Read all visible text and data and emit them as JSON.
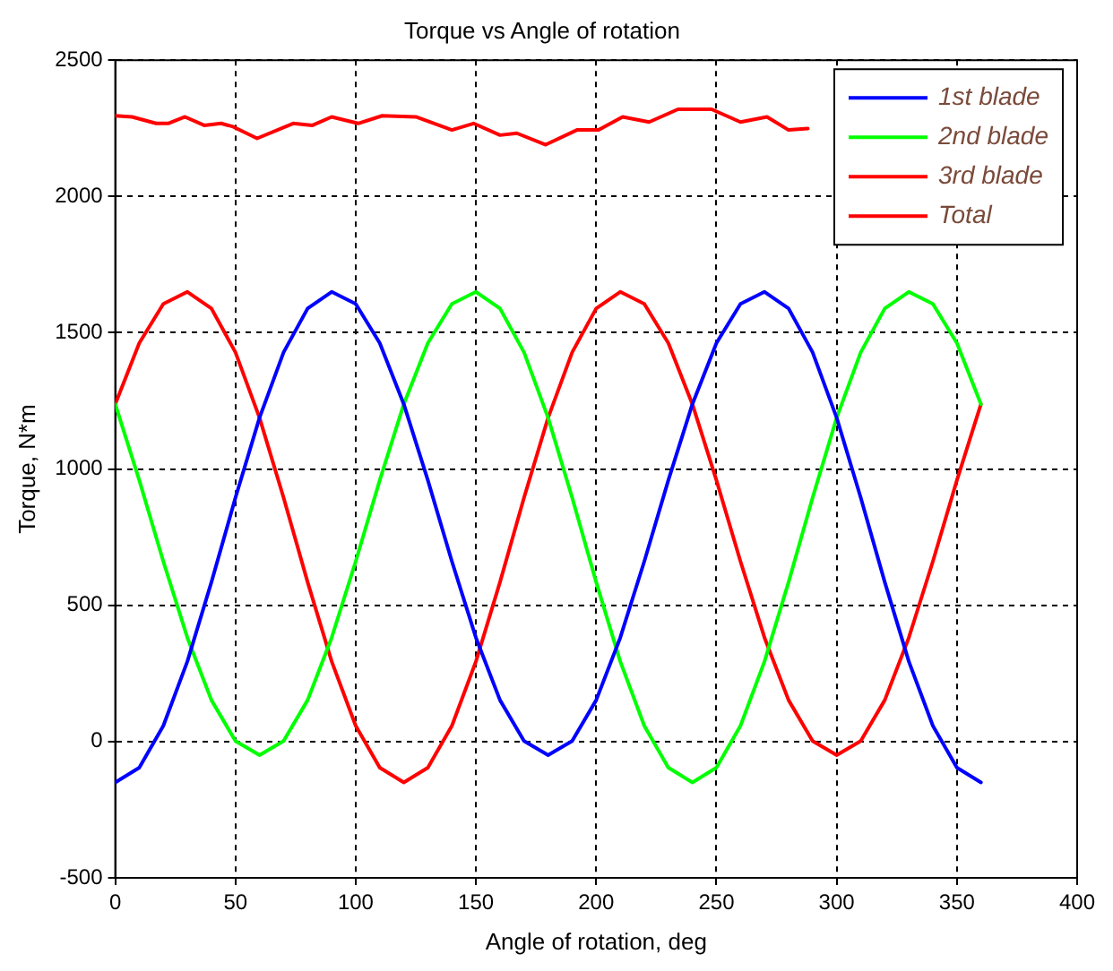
{
  "chart_data": {
    "type": "line",
    "title": "Torque vs Angle of rotation",
    "xlabel": "Angle of rotation, deg",
    "ylabel": "Torque, N*m",
    "x": [
      0,
      10,
      20,
      30,
      40,
      50,
      60,
      70,
      80,
      90,
      100,
      110,
      120,
      130,
      140,
      150,
      160,
      170,
      180,
      190,
      200,
      210,
      220,
      230,
      240,
      250,
      260,
      270,
      280,
      290,
      300,
      310,
      320,
      330,
      340,
      350,
      360
    ],
    "series": [
      {
        "name": "1st blade",
        "color": "#0000ff",
        "values": [
          -150,
          -96,
          58,
          294,
          585,
          895,
          1188,
          1428,
          1589,
          1650,
          1606,
          1462,
          1238,
          959,
          661,
          381,
          152,
          2,
          -50,
          2,
          152,
          381,
          661,
          959,
          1238,
          1462,
          1606,
          1650,
          1589,
          1428,
          1188,
          895,
          585,
          294,
          58,
          -96,
          -150
        ]
      },
      {
        "name": "2nd blade",
        "color": "#00ff00",
        "values": [
          1238,
          959,
          661,
          381,
          152,
          2,
          -50,
          2,
          152,
          381,
          661,
          959,
          1238,
          1462,
          1606,
          1650,
          1589,
          1428,
          1188,
          895,
          585,
          294,
          58,
          -96,
          -150,
          -96,
          58,
          294,
          585,
          895,
          1188,
          1428,
          1589,
          1650,
          1606,
          1462,
          1238
        ]
      },
      {
        "name": "3rd blade",
        "color": "#ff0000",
        "values": [
          1238,
          1462,
          1606,
          1650,
          1589,
          1428,
          1188,
          895,
          585,
          294,
          58,
          -96,
          -150,
          -96,
          58,
          294,
          585,
          895,
          1188,
          1428,
          1589,
          1650,
          1606,
          1462,
          1238,
          959,
          661,
          381,
          152,
          2,
          -50,
          2,
          152,
          381,
          661,
          959,
          1238
        ]
      },
      {
        "name": "Total",
        "color": "#ff0000",
        "x": [
          0,
          7,
          17,
          22,
          29,
          37,
          44,
          49,
          59,
          74,
          82,
          90,
          101,
          111,
          125,
          140,
          149,
          160,
          167,
          179,
          192,
          201,
          211,
          222,
          234,
          248,
          260,
          271,
          280,
          288
        ],
        "values": [
          2296,
          2292,
          2268,
          2268,
          2292,
          2261,
          2268,
          2256,
          2213,
          2268,
          2261,
          2292,
          2268,
          2296,
          2292,
          2244,
          2268,
          2225,
          2232,
          2190,
          2244,
          2244,
          2292,
          2273,
          2320,
          2320,
          2273,
          2292,
          2244,
          2249
        ]
      }
    ],
    "xlim": [
      0,
      400
    ],
    "xticks": [
      0,
      50,
      100,
      150,
      200,
      250,
      300,
      350,
      400
    ],
    "ylim": [
      -500,
      2500
    ],
    "yticks": [
      -500,
      0,
      500,
      1000,
      1500,
      2000,
      2500
    ],
    "grid": true,
    "legend": "top right",
    "marker": "none",
    "line_style": "solid"
  }
}
